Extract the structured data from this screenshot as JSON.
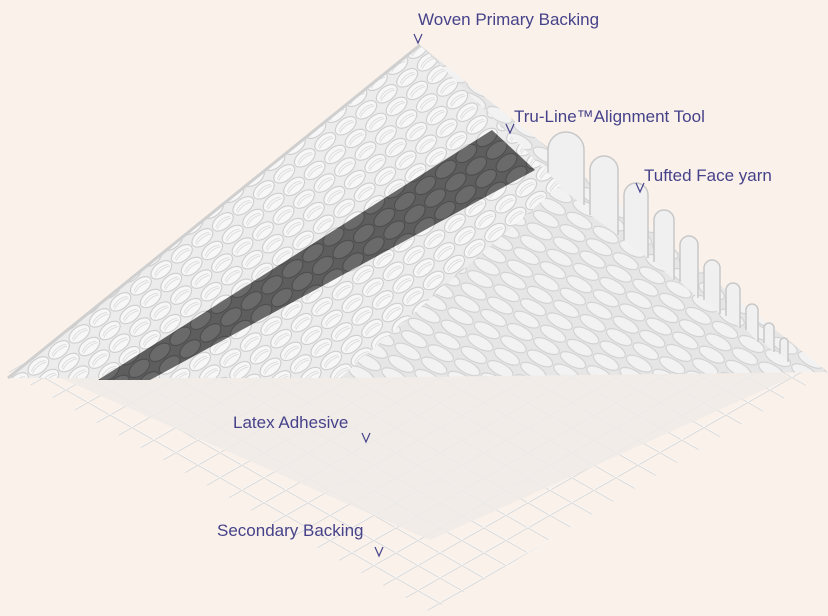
{
  "labels": {
    "primary_backing": "Woven Primary Backing",
    "alignment_tool": "Tru-Line™Alignment Tool",
    "face_yarn": "Tufted Face yarn",
    "latex": "Latex Adhesive",
    "secondary_backing": "Secondary Backing"
  }
}
